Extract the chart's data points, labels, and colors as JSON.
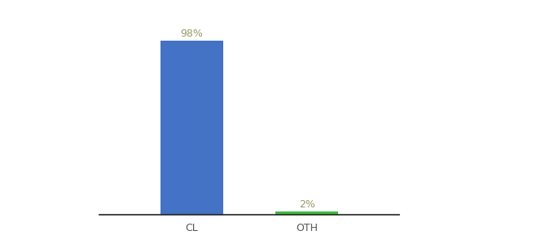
{
  "categories": [
    "CL",
    "OTH"
  ],
  "values": [
    98,
    2
  ],
  "bar_colors": [
    "#4472c4",
    "#3dbb3d"
  ],
  "label_texts": [
    "98%",
    "2%"
  ],
  "label_color": "#999966",
  "ylim": [
    0,
    110
  ],
  "background_color": "#ffffff",
  "label_fontsize": 9,
  "tick_fontsize": 9,
  "bar_width": 0.55,
  "x_positions": [
    1,
    2
  ],
  "xlim": [
    0.2,
    2.8
  ]
}
